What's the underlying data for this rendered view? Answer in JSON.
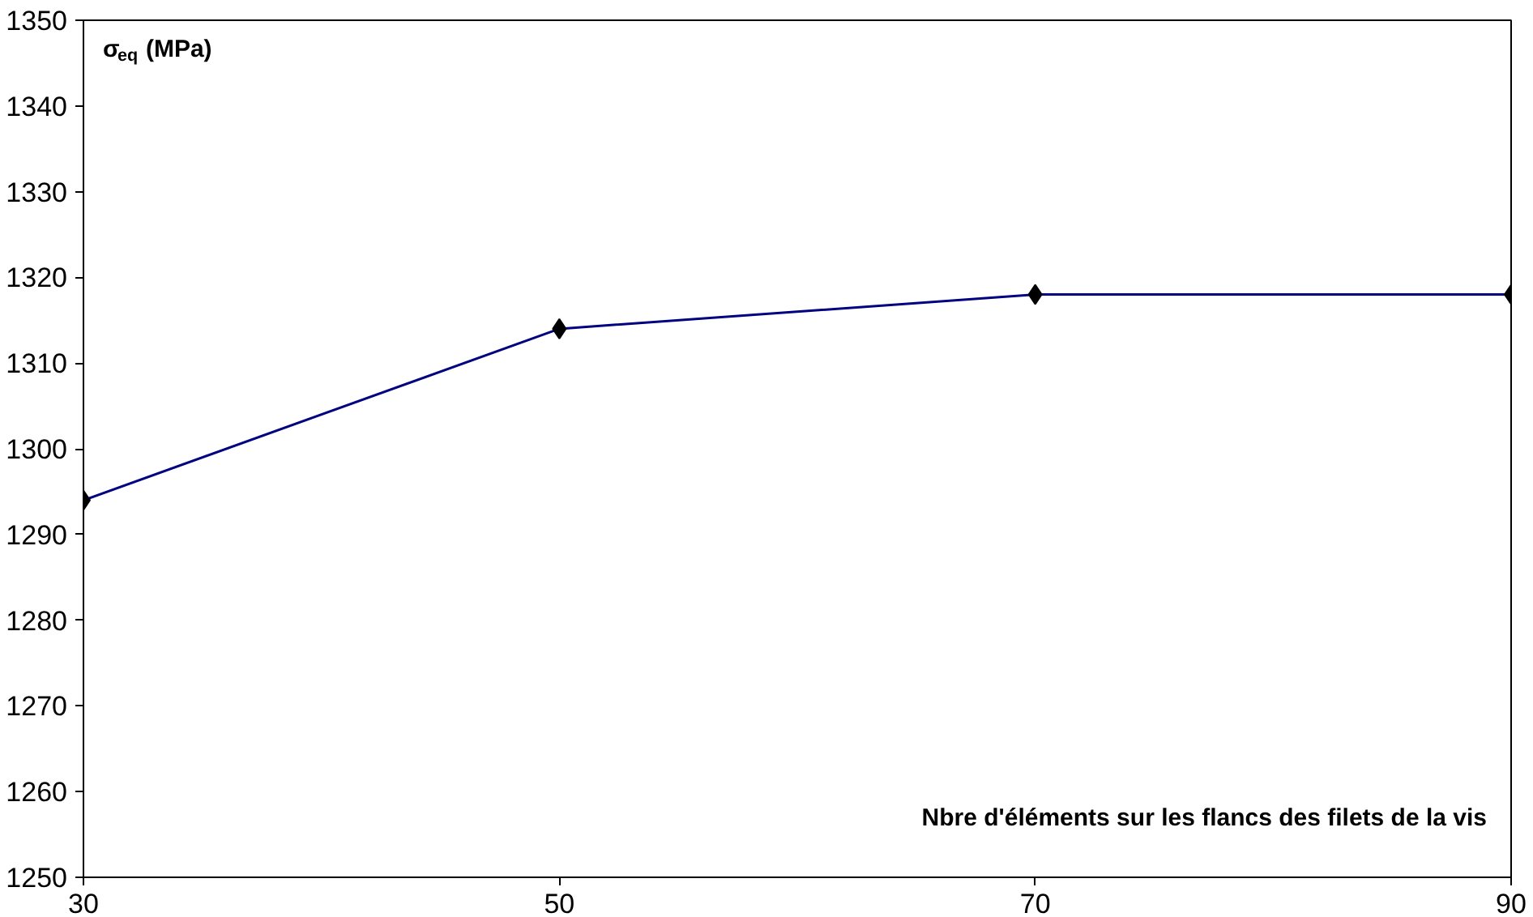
{
  "chart_data": {
    "type": "line",
    "x": [
      30,
      50,
      70,
      90
    ],
    "series": [
      {
        "color": "#000080",
        "values": [
          1294,
          1314,
          1318,
          1318
        ]
      }
    ],
    "xlim": [
      30,
      90
    ],
    "xticks": [
      30,
      50,
      70,
      90
    ],
    "ylim": [
      1250,
      1350
    ],
    "yticks": [
      1250,
      1260,
      1270,
      1280,
      1290,
      1300,
      1310,
      1320,
      1330,
      1340,
      1350
    ],
    "ylabel": "σ$_{eq}$ (MPa)",
    "xlabel": "Nbre d'éléments sur les flancs des filets de la vis",
    "marker": "diamond",
    "line_style": "solid",
    "grid": false
  }
}
